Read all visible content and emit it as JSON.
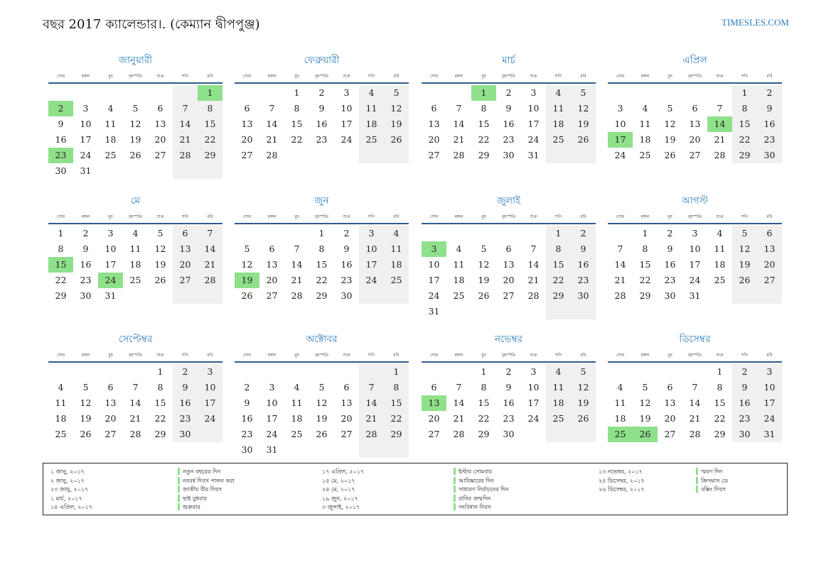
{
  "header": {
    "title": "বছর 2017 ক্যালেন্ডার।. (কেম্যান দ্বীপপুঞ্জ)",
    "site": "TIMESLES.COM"
  },
  "weekdays": [
    "সোম",
    "মঙ্গল",
    "বুধ",
    "বৃহস্পতি",
    "শুক্র",
    "শনি",
    "রবি"
  ],
  "colors": {
    "holiday": "#8fe08a",
    "weekend": "#f0f0f0",
    "month_title": "#2d7cba",
    "rule": "#2d5d8c",
    "link": "#2a7ab8"
  },
  "months": [
    {
      "name": "জানুয়ারী",
      "offset": 6,
      "days": 31,
      "holidays": [
        1,
        2,
        23
      ]
    },
    {
      "name": "ফেব্রুয়ারী",
      "offset": 2,
      "days": 28,
      "holidays": []
    },
    {
      "name": "মার্চ",
      "offset": 2,
      "days": 31,
      "holidays": [
        1
      ]
    },
    {
      "name": "এপ্রিল",
      "offset": 5,
      "days": 30,
      "holidays": [
        14,
        17
      ]
    },
    {
      "name": "মে",
      "offset": 0,
      "days": 31,
      "holidays": [
        15,
        24
      ]
    },
    {
      "name": "জুন",
      "offset": 3,
      "days": 30,
      "holidays": [
        19
      ]
    },
    {
      "name": "জুলাই",
      "offset": 5,
      "days": 31,
      "holidays": [
        3
      ]
    },
    {
      "name": "আগস্ট",
      "offset": 1,
      "days": 31,
      "holidays": []
    },
    {
      "name": "সেপ্টেম্বর",
      "offset": 4,
      "days": 30,
      "holidays": []
    },
    {
      "name": "অক্টোবর",
      "offset": 6,
      "days": 31,
      "holidays": []
    },
    {
      "name": "নভেম্বর",
      "offset": 2,
      "days": 30,
      "holidays": [
        13
      ]
    },
    {
      "name": "ডিসেম্বর",
      "offset": 4,
      "days": 31,
      "holidays": [
        25,
        26
      ]
    }
  ],
  "holiday_list": [
    {
      "date": "১ জানু, ২০১৭",
      "name": "নতুন বছরের দিন"
    },
    {
      "date": "২ জানু, ২০১৭",
      "name": "নববর্ষ দিবস পালন করা"
    },
    {
      "date": "২৩ জানু, ২০১৭",
      "name": "জাতীয় বীর দিবস"
    },
    {
      "date": "১ মার্চ, ২০১৭",
      "name": "ছাই বুধবার"
    },
    {
      "date": "১৪ এপ্রিল, ২০১৭",
      "name": "শুক্রবার"
    },
    {
      "date": "১৭ এপ্রিল, ২০১৭",
      "name": "ইস্টার সোমবার"
    },
    {
      "date": "১৫ মে, ২০১৭",
      "name": "আবিষ্কারের দিন"
    },
    {
      "date": "২৪ মে, ২০১৭",
      "name": "সাধারণ নির্বাচনের দিন"
    },
    {
      "date": "১৯ জুন, ২০১৭",
      "name": "রানির জন্মদিন"
    },
    {
      "date": "৩ জুলাই, ২০১৭",
      "name": "সংবিধান দিবস"
    },
    {
      "date": "১৩ নভেম্বর, ২০১৭",
      "name": "স্মরণ দিন"
    },
    {
      "date": "২৫ ডিসেম্বর, ২০১৭",
      "name": "ক্রিসমাস ডে"
    },
    {
      "date": "২৬ ডিসেম্বর, ২০১৭",
      "name": "বক্সিং দিবস"
    }
  ]
}
